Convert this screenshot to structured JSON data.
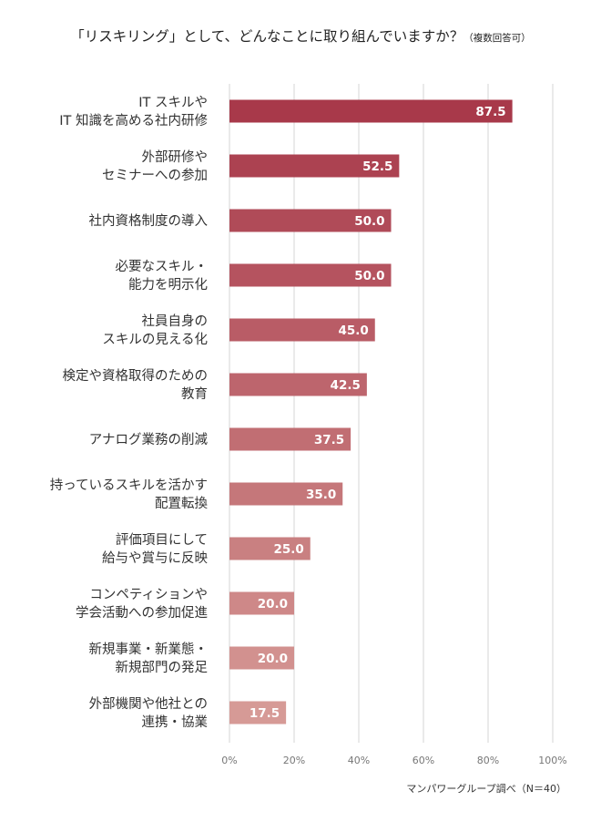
{
  "chart_data": {
    "type": "bar",
    "orientation": "horizontal",
    "title": "「リスキリング」として、どんなことに取り組んでいますか？",
    "title_note": "（複数回答可）",
    "categories": [
      [
        "IT スキルや",
        "IT 知識を高める社内研修"
      ],
      [
        "外部研修や",
        "セミナーへの参加"
      ],
      [
        "社内資格制度の導入"
      ],
      [
        "必要なスキル・",
        "能力を明示化"
      ],
      [
        "社員自身の",
        "スキルの見える化"
      ],
      [
        "検定や資格取得のための",
        "教育"
      ],
      [
        "アナログ業務の削減"
      ],
      [
        "持っているスキルを活かす",
        "配置転換"
      ],
      [
        "評価項目にして",
        "給与や賞与に反映"
      ],
      [
        "コンペティションや",
        "学会活動への参加促進"
      ],
      [
        "新規事業・新業態・",
        "新規部門の発足"
      ],
      [
        "外部機関や他社との",
        "連携・協業"
      ]
    ],
    "values": [
      87.5,
      52.5,
      50.0,
      50.0,
      45.0,
      42.5,
      37.5,
      35.0,
      25.0,
      20.0,
      20.0,
      17.5
    ],
    "value_labels": [
      "87.5",
      "52.5",
      "50.0",
      "50.0",
      "45.0",
      "42.5",
      "37.5",
      "35.0",
      "25.0",
      "20.0",
      "20.0",
      "17.5"
    ],
    "xlim": [
      0,
      100
    ],
    "xticks": [
      0,
      20,
      40,
      60,
      80,
      100
    ],
    "xtick_labels": [
      "0%",
      "20%",
      "40%",
      "60%",
      "80%",
      "100%"
    ],
    "grid": true,
    "bar_color_start": "#a8394a",
    "bar_color_end": "#d69a96",
    "gridline_color": "#d4d4d4"
  },
  "source": "マンパワーグループ調べ（N＝40）"
}
